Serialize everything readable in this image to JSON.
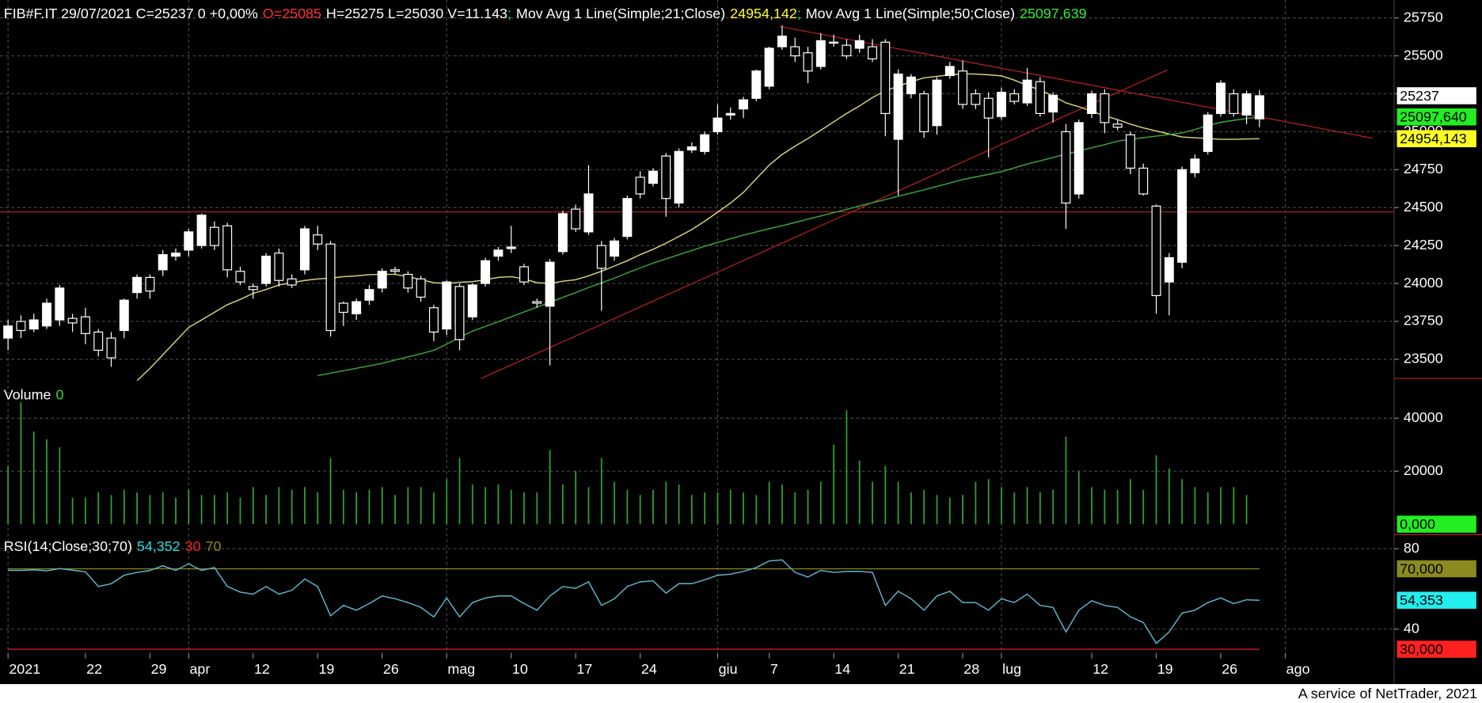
{
  "chart_data": [
    {
      "type": "candlestick",
      "title": "FIB#F.IT 29/07/2021 C=25237 0 +0,00%",
      "open_label": "O=25085",
      "open_label_color": "#ff3030",
      "summary": "H=25275 L=25030 V=11.143",
      "separator": ";",
      "separator_color": "#33dd33",
      "up_color": "#ffffff",
      "down_color": "#000000",
      "categories": [
        "2021",
        null,
        null,
        null,
        null,
        null,
        "22",
        null,
        null,
        null,
        null,
        "29",
        null,
        null,
        "apr",
        null,
        null,
        null,
        null,
        "12",
        null,
        null,
        null,
        null,
        "19",
        null,
        null,
        null,
        null,
        "26",
        null,
        null,
        null,
        null,
        "mag",
        null,
        null,
        null,
        null,
        "10",
        null,
        null,
        null,
        null,
        "17",
        null,
        null,
        null,
        null,
        "24",
        null,
        null,
        null,
        null,
        null,
        "giu",
        null,
        null,
        null,
        "7",
        null,
        null,
        null,
        null,
        "14",
        null,
        null,
        null,
        null,
        "21",
        null,
        null,
        null,
        null,
        "28",
        null,
        null,
        "lug",
        null,
        null,
        null,
        null,
        null,
        null,
        "12",
        null,
        null,
        null,
        null,
        "19",
        null,
        null,
        null,
        null,
        "26",
        null,
        null,
        null,
        null,
        "ago"
      ],
      "open": [
        23640,
        23750,
        23700,
        23720,
        23760,
        23770,
        23780,
        23680,
        23640,
        23690,
        23940,
        24040,
        24090,
        24180,
        24220,
        24250,
        24370,
        24380,
        24080,
        23980,
        24000,
        24200,
        24030,
        24090,
        24320,
        24260,
        23870,
        23800,
        23890,
        23970,
        24090,
        24060,
        24030,
        23840,
        23700,
        23980,
        23780,
        24000,
        24180,
        24230,
        24110,
        23880,
        23850,
        24210,
        24490,
        24340,
        24250,
        24180,
        24310,
        24700,
        24660,
        24840,
        24530,
        24880,
        24870,
        25000,
        25110,
        25150,
        25220,
        25300,
        25560,
        25560,
        25520,
        25430,
        25590,
        25570,
        25550,
        25560,
        25590,
        24950,
        25250,
        25250,
        25040,
        25370,
        25400,
        25250,
        25220,
        25100,
        25250,
        25190,
        25330,
        25130,
        25000,
        24590,
        25120,
        25250,
        25050,
        24980,
        24760,
        24510,
        24010,
        24140,
        24730,
        24870,
        25120,
        25250,
        25110,
        25085,
        null,
        null
      ],
      "high": [
        23760,
        23790,
        23800,
        23900,
        23990,
        23800,
        23840,
        23700,
        23680,
        23900,
        24060,
        24060,
        24220,
        24230,
        24360,
        24460,
        24410,
        24400,
        24110,
        24000,
        24200,
        24230,
        24060,
        24380,
        24380,
        24280,
        23880,
        23900,
        23990,
        24100,
        24110,
        24080,
        24050,
        23860,
        24020,
        24000,
        24000,
        24170,
        24240,
        24380,
        24130,
        23900,
        24160,
        24480,
        24520,
        24780,
        24280,
        24300,
        24580,
        24740,
        24760,
        24860,
        24890,
        24930,
        25000,
        25180,
        25160,
        25230,
        25410,
        25560,
        25700,
        25620,
        25560,
        25650,
        25640,
        25610,
        25640,
        25610,
        25610,
        25410,
        25380,
        25270,
        25360,
        25460,
        25470,
        25280,
        25260,
        25290,
        25280,
        25420,
        25360,
        25260,
        25050,
        25080,
        25270,
        25280,
        25080,
        25000,
        24790,
        24520,
        24200,
        24770,
        24850,
        25130,
        25340,
        25280,
        25270,
        25275,
        null,
        null
      ],
      "low": [
        23560,
        23640,
        23680,
        23700,
        23720,
        23680,
        23600,
        23520,
        23450,
        23640,
        23900,
        23900,
        24050,
        24150,
        24180,
        24230,
        24220,
        24040,
        23990,
        23900,
        23980,
        23980,
        23970,
        24060,
        24220,
        23650,
        23720,
        23760,
        23860,
        23940,
        24060,
        23940,
        23880,
        23620,
        23660,
        23560,
        23760,
        23980,
        24150,
        24200,
        23990,
        23840,
        23460,
        24190,
        24340,
        24320,
        23820,
        24150,
        24290,
        24560,
        24640,
        24440,
        24500,
        24860,
        24850,
        24980,
        25080,
        25090,
        25200,
        25280,
        25540,
        25460,
        25320,
        25410,
        25560,
        25480,
        25520,
        25460,
        24970,
        24580,
        25220,
        24960,
        24980,
        25350,
        25150,
        25150,
        24830,
        25080,
        25180,
        25170,
        25100,
        25060,
        24360,
        24560,
        25090,
        24990,
        25010,
        24720,
        24580,
        23800,
        23790,
        24100,
        24700,
        24850,
        25100,
        25100,
        25050,
        25030,
        null,
        null
      ],
      "close": [
        23720,
        23690,
        23760,
        23870,
        23970,
        23740,
        23670,
        23560,
        23510,
        23890,
        24040,
        23950,
        24190,
        24200,
        24340,
        24450,
        24250,
        24090,
        24010,
        23960,
        24180,
        24020,
        23990,
        24360,
        24260,
        23690,
        23810,
        23880,
        23960,
        24080,
        24080,
        23970,
        23910,
        23680,
        24010,
        23630,
        23990,
        24150,
        24220,
        24240,
        24010,
        23870,
        24140,
        24460,
        24360,
        24590,
        24100,
        24280,
        24560,
        24590,
        24740,
        24560,
        24870,
        24900,
        24980,
        25090,
        25120,
        25210,
        25400,
        25550,
        25630,
        25500,
        25400,
        25600,
        25590,
        25500,
        25600,
        25480,
        25120,
        25380,
        25360,
        25000,
        25340,
        25430,
        25180,
        25180,
        25090,
        25260,
        25200,
        25340,
        25120,
        25240,
        24530,
        25060,
        25250,
        25060,
        25030,
        24760,
        24590,
        23920,
        24170,
        24750,
        24820,
        25110,
        25320,
        25120,
        25250,
        25237,
        null,
        null
      ],
      "series": [
        {
          "name": "Mov Avg 1 Line(Simple;21;Close)",
          "color": "#d8d880",
          "value_label": "24954,142",
          "label_color": "#ffff33",
          "values": [
            null,
            null,
            null,
            null,
            null,
            null,
            null,
            null,
            null,
            null,
            23360,
            23440,
            23530,
            23620,
            23710,
            23760,
            23810,
            23860,
            23895,
            23935,
            23960,
            23990,
            24005,
            24020,
            24030,
            24035,
            24045,
            24050,
            24058,
            24060,
            24060,
            24045,
            24025,
            24005,
            24000,
            24008,
            24012,
            24025,
            24040,
            24045,
            24030,
            24005,
            24000,
            24015,
            24025,
            24050,
            24080,
            24115,
            24150,
            24190,
            24225,
            24265,
            24310,
            24355,
            24410,
            24470,
            24530,
            24600,
            24690,
            24780,
            24850,
            24905,
            24955,
            25010,
            25065,
            25120,
            25170,
            25225,
            25270,
            25300,
            25330,
            25355,
            25365,
            25375,
            25382,
            25380,
            25375,
            25368,
            25340,
            25305,
            25275,
            25235,
            25190,
            25165,
            25135,
            25105,
            25080,
            25050,
            25025,
            25005,
            24985,
            24965,
            24960,
            24955,
            24950,
            24950,
            24952,
            24954.142,
            null,
            null
          ]
        },
        {
          "name": "Mov Avg 1 Line(Simple;50;Close)",
          "color": "#3aaa3a",
          "value_label": "25097,639",
          "label_color": "#33ee33",
          "values": [
            null,
            null,
            null,
            null,
            null,
            null,
            null,
            null,
            null,
            null,
            null,
            null,
            null,
            null,
            null,
            null,
            null,
            null,
            null,
            null,
            null,
            null,
            null,
            null,
            23393,
            23409,
            23425,
            23441,
            23457,
            23474,
            23495,
            23516,
            23537,
            23560,
            23600,
            23645,
            23686,
            23717,
            23748,
            23780,
            23812,
            23844,
            23876,
            23908,
            23940,
            23973,
            24004,
            24035,
            24070,
            24102,
            24134,
            24162,
            24190,
            24218,
            24245,
            24270,
            24295,
            24318,
            24340,
            24361,
            24380,
            24402,
            24424,
            24445,
            24467,
            24488,
            24511,
            24532,
            24553,
            24575,
            24596,
            24617,
            24640,
            24662,
            24685,
            24702,
            24719,
            24737,
            24762,
            24787,
            24808,
            24830,
            24852,
            24873,
            24894,
            24915,
            24938,
            24950,
            24961,
            24971,
            24982,
            24992,
            25015,
            25040,
            25062,
            25075,
            25087,
            25097.639,
            null,
            null
          ]
        }
      ],
      "markers": [
        {
          "value": 25237,
          "label": "25237",
          "color": "#ffffff"
        },
        {
          "value": 25097.64,
          "label": "25097,640",
          "color": "#22ee22"
        },
        {
          "value": 24954.143,
          "label": "24954,143",
          "color": "#ffff22"
        }
      ],
      "ylim": [
        23374,
        25868
      ],
      "yticks": [
        23500,
        23750,
        24000,
        24250,
        24500,
        24750,
        25000,
        25250,
        25500,
        25750
      ],
      "grid": true
    },
    {
      "type": "bar",
      "title": "Volume",
      "latest_label": "0",
      "latest_color": "#33dd33",
      "color": "#2fa02f",
      "values": [
        22000,
        46000,
        35000,
        32000,
        29000,
        10000,
        10000,
        12000,
        11000,
        13000,
        12000,
        11000,
        12000,
        10000,
        13000,
        11000,
        11000,
        12000,
        10000,
        14000,
        11000,
        14000,
        13000,
        14000,
        12000,
        25000,
        13000,
        12000,
        13000,
        14000,
        11000,
        14000,
        14000,
        12000,
        17000,
        25000,
        15000,
        14000,
        15000,
        13000,
        12000,
        12000,
        28000,
        15000,
        20000,
        14000,
        25000,
        16000,
        13000,
        11000,
        13000,
        16000,
        15000,
        11000,
        12000,
        12000,
        13000,
        12000,
        11000,
        16000,
        15000,
        12000,
        13000,
        16000,
        30000,
        43000,
        24000,
        16000,
        22000,
        16000,
        12000,
        13000,
        11000,
        10000,
        11000,
        16000,
        17000,
        14000,
        12000,
        14000,
        12000,
        13000,
        33000,
        20000,
        14000,
        13000,
        13000,
        17000,
        13000,
        26000,
        21000,
        17000,
        14000,
        12000,
        14000,
        14000,
        11000,
        0,
        null,
        null
      ],
      "markers": [
        {
          "value": 0,
          "label": "0,000",
          "color": "#22ee22"
        }
      ],
      "ylim": [
        0,
        53200
      ],
      "yticks": [
        20000,
        40000
      ],
      "grid": true
    },
    {
      "type": "line",
      "title": "RSI(14;Close;30;70)",
      "color": "#5fb8d0",
      "value_label": "54,352",
      "value_label_color": "#33dddd",
      "values": [
        69.2,
        69.2,
        69.5,
        69.0,
        70.1,
        69.3,
        68.5,
        61.2,
        62.6,
        66.8,
        68.2,
        69.2,
        71.5,
        69.2,
        72.5,
        69.2,
        70.6,
        61.2,
        58.4,
        57.4,
        61.2,
        57.4,
        59.3,
        64.9,
        61.2,
        46.6,
        51.8,
        49.4,
        52.7,
        56.5,
        55.1,
        53.2,
        50.8,
        46.1,
        55.5,
        46.1,
        53.2,
        55.5,
        56.5,
        56.5,
        52.7,
        49.4,
        56.5,
        61.2,
        60.3,
        63.5,
        51.8,
        55.1,
        61.2,
        63.5,
        64.0,
        57.9,
        62.6,
        62.6,
        64.5,
        66.8,
        67.3,
        68.7,
        70.6,
        73.9,
        74.4,
        68.2,
        65.9,
        69.2,
        68.2,
        68.7,
        68.7,
        68.2,
        51.8,
        58.8,
        55.1,
        49.4,
        56.5,
        58.8,
        53.2,
        53.2,
        49.4,
        55.1,
        53.2,
        57.4,
        51.8,
        50.8,
        38.6,
        49.4,
        54.1,
        51.8,
        50.8,
        46.1,
        43.3,
        32.9,
        38.6,
        48.0,
        49.4,
        53.2,
        55.5,
        52.7,
        54.6,
        54.352,
        null,
        null
      ],
      "markers": [
        {
          "value": 54.353,
          "label": "54,353",
          "color": "#22eeee"
        }
      ],
      "levels": [
        {
          "value": 30,
          "label": "30",
          "box_label": "30,000",
          "color": "#ff2020"
        },
        {
          "value": 70,
          "label": "70",
          "box_label": "70,000",
          "color": "#8a8a20"
        }
      ],
      "ylim": [
        28.2,
        85.6
      ],
      "yticks": [
        40,
        80
      ],
      "grid": true
    }
  ],
  "footer": "A service of NetTrader, 2021"
}
